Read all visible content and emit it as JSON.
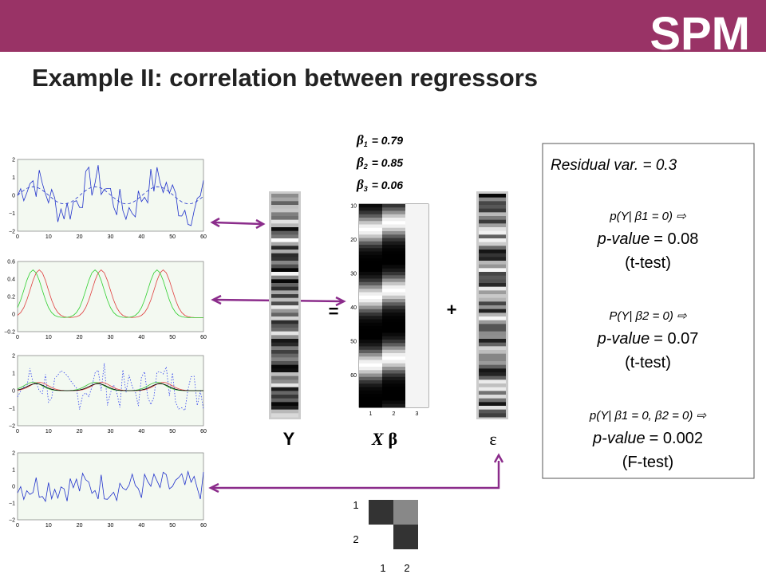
{
  "header": {
    "logo": "SPM"
  },
  "title": "Example II: correlation between regressors",
  "betas": [
    {
      "symbol": "β",
      "index": "1",
      "value": "= 0.79"
    },
    {
      "symbol": "β",
      "index": "2",
      "value": "= 0.85"
    },
    {
      "symbol": "β",
      "index": "3",
      "value": "= 0.06"
    }
  ],
  "equation": {
    "y": "Y",
    "x": "X",
    "beta": "β",
    "error": "ε",
    "equals": "=",
    "plus": "+"
  },
  "design_matrix": {
    "yticks": [
      "10",
      "20",
      "30",
      "40",
      "50",
      "60"
    ],
    "xticks": [
      "1",
      "2",
      "3"
    ]
  },
  "results": {
    "residual": "Residual var. =  0.3",
    "tests": [
      {
        "hypothesis": "p(Y|  β1 = 0)  ⇨",
        "pvalue_label": "p-value",
        "pvalue": "= 0.08",
        "test": "(t-test)"
      },
      {
        "hypothesis": "P(Y|  β2 = 0)  ⇨",
        "pvalue_label": "p-value",
        "pvalue": "= 0.07",
        "test": "(t-test)"
      },
      {
        "hypothesis": "p(Y|  β1 = 0,  β2 = 0)  ⇨",
        "pvalue_label": "p-value",
        "pvalue": "=  0.002",
        "test": "(F-test)"
      }
    ]
  },
  "covariance": {
    "rows": [
      "1",
      "2"
    ],
    "cols": [
      "1",
      "2"
    ]
  },
  "plots": [
    {
      "yticks": [
        "2",
        "1",
        "0",
        "−1",
        "−2"
      ],
      "xticks": [
        "0",
        "10",
        "20",
        "30",
        "40",
        "50",
        "60"
      ]
    },
    {
      "yticks": [
        "0.6",
        "0.4",
        "0.2",
        "0",
        "−0.2"
      ],
      "xticks": [
        "0",
        "10",
        "20",
        "30",
        "40",
        "50",
        "60"
      ]
    },
    {
      "yticks": [
        "2",
        "1",
        "0",
        "−1",
        "−2"
      ],
      "xticks": [
        "0",
        "10",
        "20",
        "30",
        "40",
        "50",
        "60"
      ]
    },
    {
      "yticks": [
        "2",
        "1",
        "0",
        "−1",
        "−2"
      ],
      "xticks": [
        "0",
        "10",
        "20",
        "30",
        "40",
        "50",
        "60"
      ]
    }
  ]
}
